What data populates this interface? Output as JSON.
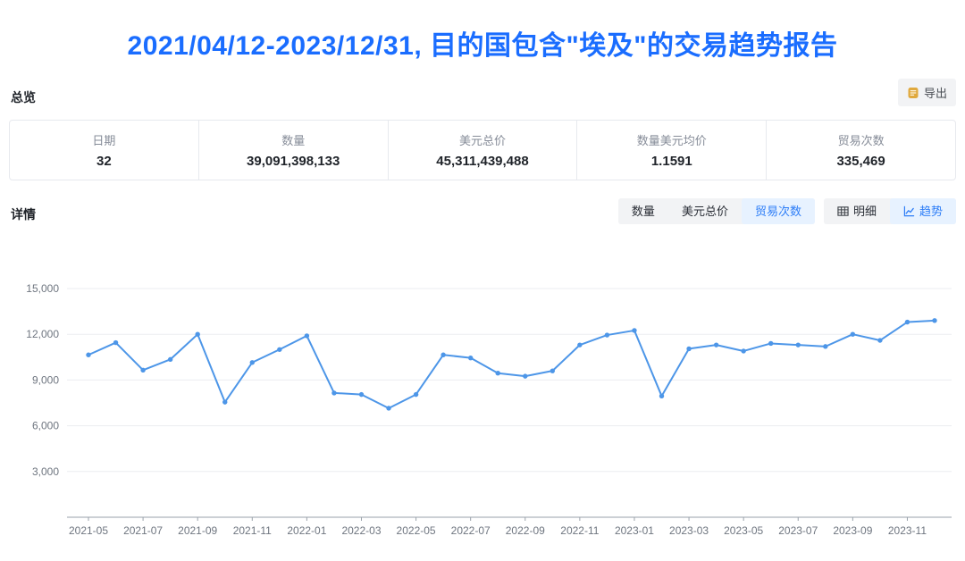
{
  "title": "2021/04/12-2023/12/31, 目的国包含\"埃及\"的交易趋势报告",
  "overview": {
    "section_label": "总览",
    "export_label": "导出",
    "stats": [
      {
        "label": "日期",
        "value": "32"
      },
      {
        "label": "数量",
        "value": "39,091,398,133"
      },
      {
        "label": "美元总价",
        "value": "45,311,439,488"
      },
      {
        "label": "数量美元均价",
        "value": "1.1591"
      },
      {
        "label": "贸易次数",
        "value": "335,469"
      }
    ]
  },
  "details": {
    "section_label": "详情",
    "metric_tabs": [
      {
        "label": "数量",
        "selected": false
      },
      {
        "label": "美元总价",
        "selected": false
      },
      {
        "label": "贸易次数",
        "selected": true
      }
    ],
    "view_tabs": [
      {
        "label": "明细",
        "icon": "table-icon",
        "selected": false
      },
      {
        "label": "趋势",
        "icon": "trend-icon",
        "selected": true
      }
    ]
  },
  "colors": {
    "title_blue": "#1a6dff",
    "tab_selected_text": "#2e7ef7",
    "tab_selected_bg": "#e7f2ff",
    "line_blue": "#4d96e8",
    "grid_line": "#ebedf1",
    "axis_line": "#9aa2ab",
    "axis_text": "#6f7680",
    "export_icon_gold": "#e0a93e"
  },
  "chart_data": {
    "type": "line",
    "series_name": "贸易次数",
    "x": [
      "2021-05",
      "2021-06",
      "2021-07",
      "2021-08",
      "2021-09",
      "2021-10",
      "2021-11",
      "2021-12",
      "2022-01",
      "2022-02",
      "2022-03",
      "2022-04",
      "2022-05",
      "2022-06",
      "2022-07",
      "2022-08",
      "2022-09",
      "2022-10",
      "2022-11",
      "2022-12",
      "2023-01",
      "2023-02",
      "2023-03",
      "2023-04",
      "2023-05",
      "2023-06",
      "2023-07",
      "2023-08",
      "2023-09",
      "2023-10",
      "2023-11",
      "2023-12"
    ],
    "values": [
      10650,
      11450,
      9650,
      10350,
      12000,
      7550,
      10150,
      11000,
      11900,
      8150,
      8050,
      7150,
      8050,
      10650,
      10450,
      9450,
      9250,
      9600,
      11300,
      11950,
      12250,
      7950,
      11050,
      11300,
      10900,
      11400,
      11300,
      11200,
      12000,
      11600,
      12800,
      12900
    ],
    "ylim": [
      0,
      15000
    ],
    "yticks": [
      3000,
      6000,
      9000,
      12000,
      15000
    ],
    "xtick_every": 2,
    "grid": true,
    "legend_position": "none"
  }
}
